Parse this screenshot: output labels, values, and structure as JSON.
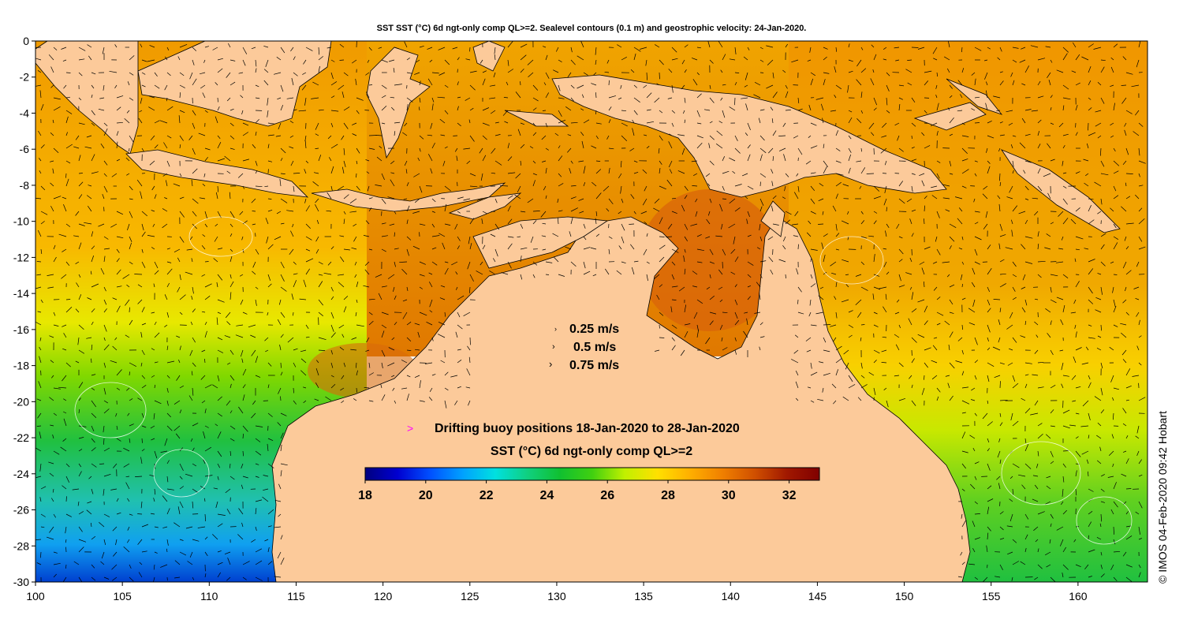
{
  "title": "SST SST (°C) 6d ngt-only comp QL>=2. Sealevel contours (0.1 m) and geostrophic velocity: 24-Jan-2020.",
  "credit": "© IMOS 04-Feb-2020 09:42 Hobart",
  "axes": {
    "x_ticks": [
      "100",
      "105",
      "110",
      "115",
      "120",
      "125",
      "130",
      "135",
      "140",
      "145",
      "150",
      "155",
      "160"
    ],
    "y_ticks": [
      "0",
      "-2",
      "-4",
      "-6",
      "-8",
      "-10",
      "-12",
      "-14",
      "-16",
      "-18",
      "-20",
      "-22",
      "-24",
      "-26",
      "-28",
      "-30"
    ],
    "lon_range": [
      100,
      164
    ],
    "lat_range": [
      -30,
      0
    ]
  },
  "velocity_key": [
    {
      "label": "0.25 m/s",
      "speed": 0.25
    },
    {
      "label": "0.5 m/s",
      "speed": 0.5
    },
    {
      "label": "0.75 m/s",
      "speed": 0.75
    }
  ],
  "buoy_legend": {
    "marker": ">",
    "label": "Drifting buoy positions 18-Jan-2020 to 28-Jan-2020",
    "marker_color": "#ff00ff"
  },
  "colorbar": {
    "title": "SST (°C) 6d ngt-only comp QL>=2",
    "min": 18,
    "max": 33,
    "ticks": [
      "18",
      "20",
      "22",
      "24",
      "26",
      "28",
      "30",
      "32"
    ],
    "colors": [
      "#00007f",
      "#0000d0",
      "#0050ff",
      "#00a0ff",
      "#00e0e0",
      "#10d080",
      "#10c030",
      "#40d010",
      "#c0f000",
      "#ffe000",
      "#ffb000",
      "#f08000",
      "#d05000",
      "#a01800",
      "#800000"
    ]
  },
  "land_color": "#fcca9a"
}
